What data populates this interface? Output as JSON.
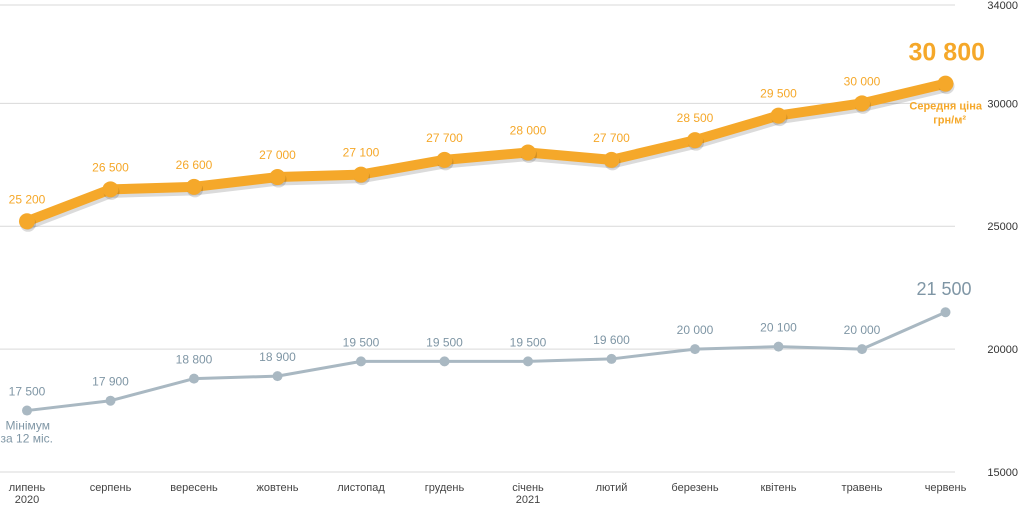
{
  "chart_data": {
    "type": "line",
    "categories": [
      "липень",
      "серпень",
      "вересень",
      "жовтень",
      "листопад",
      "грудень",
      "січень",
      "лютий",
      "березень",
      "квітень",
      "травень",
      "червень"
    ],
    "year_labels": [
      {
        "category": "липень",
        "year": "2020"
      },
      {
        "category": "січень",
        "year": "2021"
      }
    ],
    "y_axis": {
      "position": "right",
      "ticks": [
        15000,
        20000,
        25000,
        30000,
        34000
      ],
      "ylim": [
        15000,
        34000
      ],
      "grid": true
    },
    "series": [
      {
        "name": "Середня ціна грн/м²",
        "color": "#f5a82a",
        "values": [
          25200,
          26500,
          26600,
          27000,
          27100,
          27700,
          28000,
          27700,
          28500,
          29500,
          30000,
          30800
        ],
        "labels": [
          "25 200",
          "26 500",
          "26 600",
          "27 000",
          "27 100",
          "27 700",
          "28 000",
          "27 700",
          "28 500",
          "29 500",
          "30 000",
          "30 800"
        ],
        "annotation": [
          "Середня ціна",
          "грн/м²"
        ]
      },
      {
        "name": "Мінімум за 12 міс.",
        "color": "#a9b8c2",
        "values": [
          17500,
          17900,
          18800,
          18900,
          19500,
          19500,
          19500,
          19600,
          20000,
          20100,
          20000,
          21500
        ],
        "labels": [
          "17 500",
          "17 900",
          "18 800",
          "18 900",
          "19 500",
          "19 500",
          "19 500",
          "19 600",
          "20 000",
          "20 100",
          "20 000",
          "21 500"
        ],
        "annotation": [
          "Мінімум",
          "за 12 міс."
        ]
      }
    ]
  }
}
